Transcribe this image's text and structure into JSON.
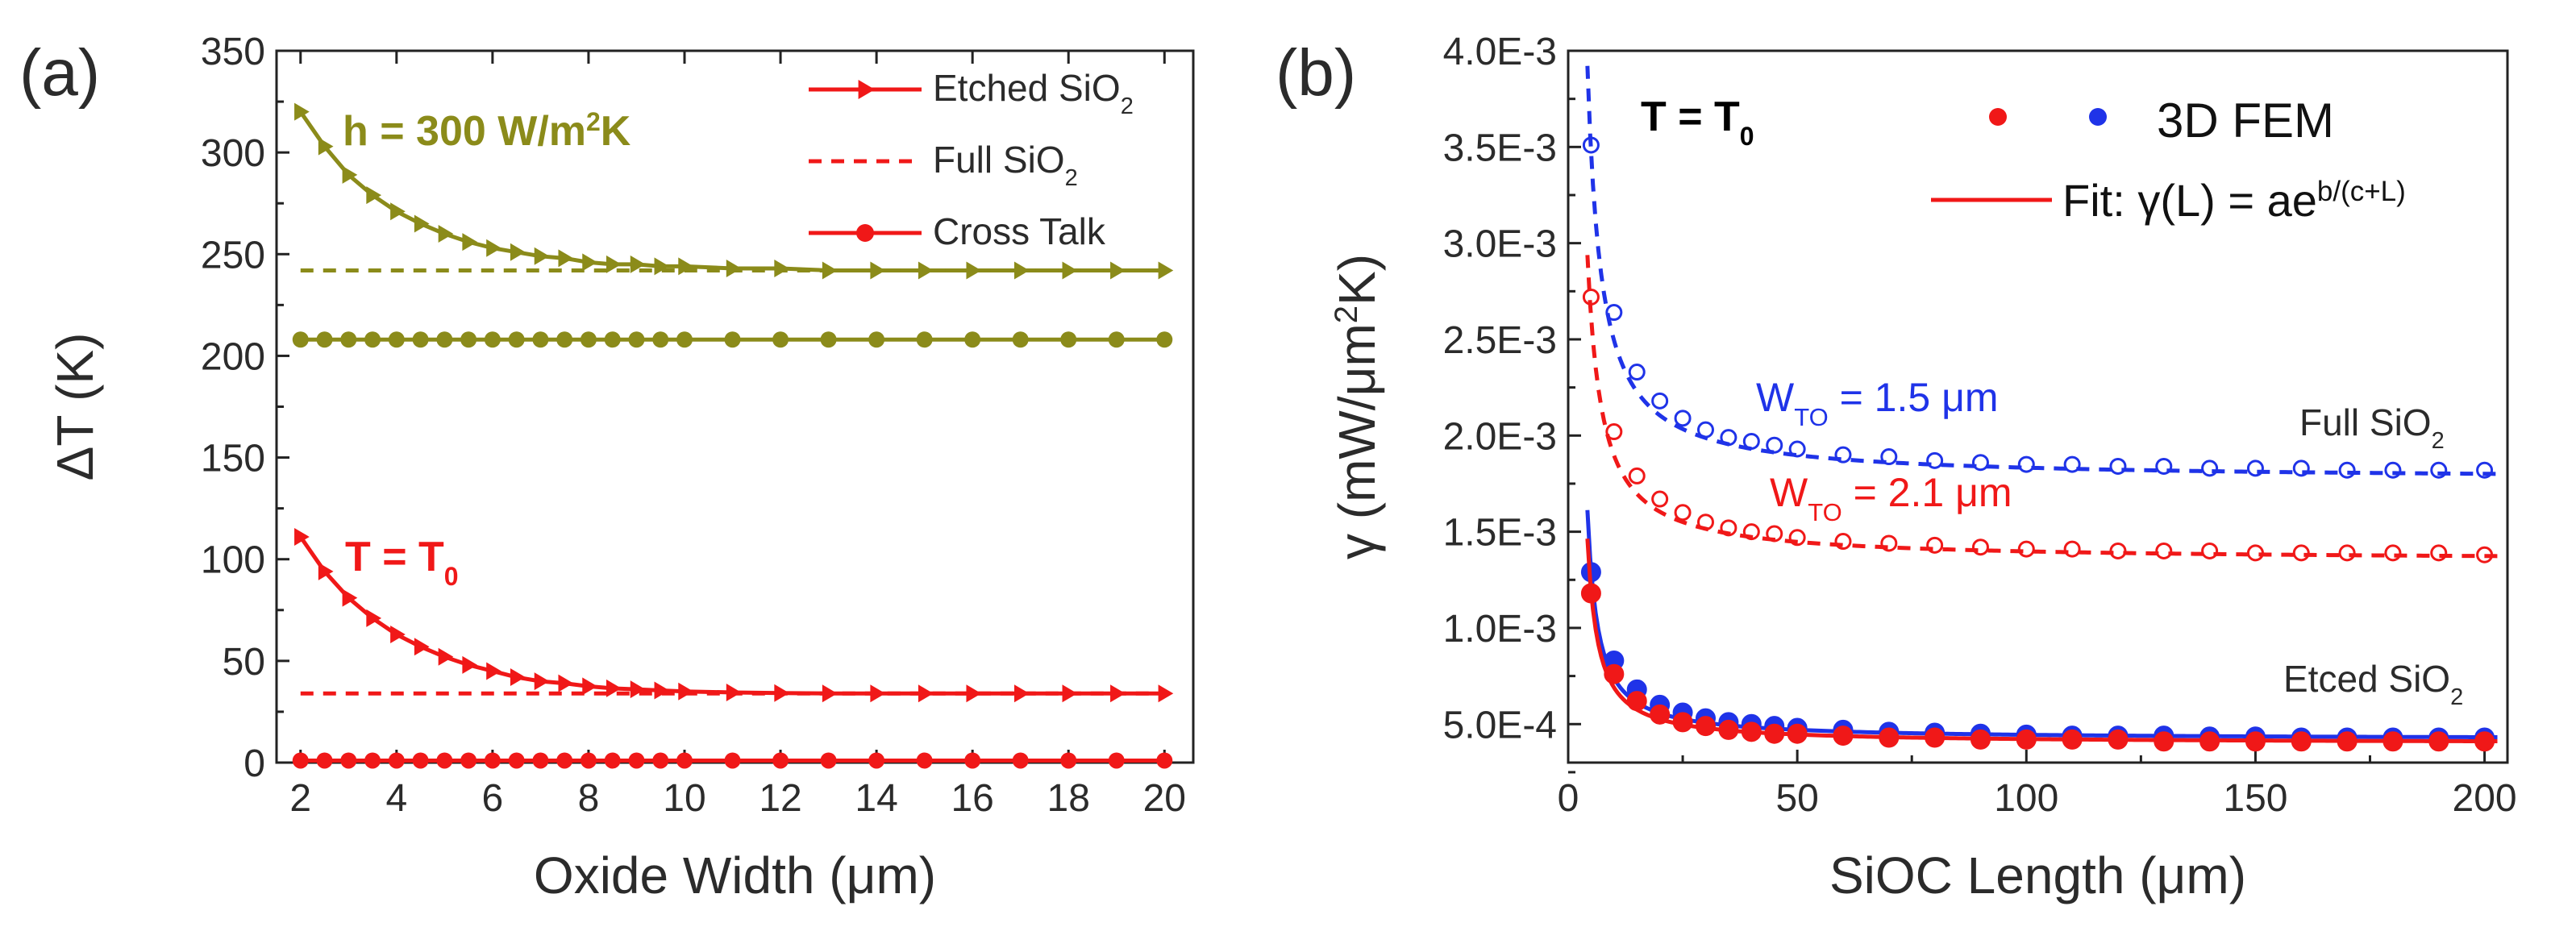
{
  "colors": {
    "olive": "#8b8b1a",
    "red": "#f01818",
    "blue": "#1f33e8",
    "axis": "#222222",
    "text": "#2b2b2b"
  },
  "panel_labels": {
    "a": "(a)",
    "b": "(b)"
  },
  "chart_data": [
    {
      "type": "line",
      "panel": "(a)",
      "xlabel": "Oxide Width (μm)",
      "ylabel": "ΔT (K)",
      "xlim": [
        1.5,
        20.6
      ],
      "ylim": [
        0,
        350
      ],
      "xticks": [
        2,
        4,
        6,
        8,
        10,
        12,
        14,
        16,
        18,
        20
      ],
      "yticks": [
        0,
        50,
        100,
        150,
        200,
        250,
        300,
        350
      ],
      "legend": {
        "placement": "top-right",
        "entries": [
          {
            "label": "Etched SiO",
            "subscript": "2",
            "style": "solid-triangle"
          },
          {
            "label": "Full SiO",
            "subscript": "2",
            "style": "dashed"
          },
          {
            "label": "Cross Talk",
            "style": "solid-circle"
          }
        ]
      },
      "annotations": [
        {
          "text": "h = 300 W/m",
          "sup": "2",
          "after": "K",
          "color": "olive"
        },
        {
          "text": "T = T",
          "sub": "0",
          "color": "red"
        }
      ],
      "series": [
        {
          "name": "Etched SiO2 (h = 300 W/m2K)",
          "color": "olive",
          "style": "solid",
          "marker": "triangle",
          "x": [
            2,
            2.5,
            3,
            3.5,
            4,
            4.5,
            5,
            5.5,
            6,
            6.5,
            7,
            7.5,
            8,
            8.5,
            9,
            9.5,
            10,
            11,
            12,
            13,
            14,
            15,
            16,
            17,
            18,
            19,
            20
          ],
          "y": [
            320,
            303,
            289,
            279,
            271,
            265,
            260,
            256,
            253,
            251,
            249,
            248,
            246,
            245,
            245,
            244,
            244,
            243,
            243,
            242,
            242,
            242,
            242,
            242,
            242,
            242,
            242
          ]
        },
        {
          "name": "Full SiO2 (h = 300 W/m2K)",
          "color": "olive",
          "style": "dashed",
          "x": [
            2,
            20
          ],
          "y": [
            242,
            242
          ]
        },
        {
          "name": "Cross Talk (h = 300 W/m2K)",
          "color": "olive",
          "style": "solid",
          "marker": "circle",
          "x": [
            2,
            2.5,
            3,
            3.5,
            4,
            4.5,
            5,
            5.5,
            6,
            6.5,
            7,
            7.5,
            8,
            8.5,
            9,
            9.5,
            10,
            11,
            12,
            13,
            14,
            15,
            16,
            17,
            18,
            19,
            20
          ],
          "y": [
            208,
            208,
            208,
            208,
            208,
            208,
            208,
            208,
            208,
            208,
            208,
            208,
            208,
            208,
            208,
            208,
            208,
            208,
            208,
            208,
            208,
            208,
            208,
            208,
            208,
            208,
            208
          ]
        },
        {
          "name": "Etched SiO2 (T = T0)",
          "color": "red",
          "style": "solid",
          "marker": "triangle",
          "x": [
            2,
            2.5,
            3,
            3.5,
            4,
            4.5,
            5,
            5.5,
            6,
            6.5,
            7,
            7.5,
            8,
            8.5,
            9,
            9.5,
            10,
            11,
            12,
            13,
            14,
            15,
            16,
            17,
            18,
            19,
            20
          ],
          "y": [
            111,
            94,
            81,
            71,
            63,
            57,
            52,
            48,
            45,
            42,
            40,
            39,
            37.5,
            36.5,
            36,
            35.5,
            35,
            34.5,
            34.2,
            34,
            34,
            34,
            34,
            34,
            34,
            34,
            34
          ]
        },
        {
          "name": "Full SiO2 (T = T0)",
          "color": "red",
          "style": "dashed",
          "x": [
            2,
            20
          ],
          "y": [
            34,
            34
          ]
        },
        {
          "name": "Cross Talk (T = T0)",
          "color": "red",
          "style": "solid",
          "marker": "circle",
          "x": [
            2,
            2.5,
            3,
            3.5,
            4,
            4.5,
            5,
            5.5,
            6,
            6.5,
            7,
            7.5,
            8,
            8.5,
            9,
            9.5,
            10,
            11,
            12,
            13,
            14,
            15,
            16,
            17,
            18,
            19,
            20
          ],
          "y": [
            1,
            1,
            1,
            1,
            1,
            1,
            1,
            1,
            1,
            1,
            1,
            1,
            1,
            1,
            1,
            1,
            1,
            1,
            1,
            1,
            1,
            1,
            1,
            1,
            1,
            1,
            1
          ]
        }
      ]
    },
    {
      "type": "scatter",
      "panel": "(b)",
      "xlabel": "SiOC Length (μm)",
      "ylabel": "γ (mW/μm²K)",
      "ylabel_parts": {
        "a": "γ (mW/μm",
        "sup": "2",
        "b": "K)"
      },
      "xlim": [
        0,
        205
      ],
      "ylim": [
        0.0003,
        0.004
      ],
      "xticks": [
        0,
        50,
        100,
        150,
        200
      ],
      "yticks": [
        0.0005,
        0.001,
        0.0015,
        0.002,
        0.0025,
        0.003,
        0.0035,
        0.004
      ],
      "ytick_labels": [
        "5.0E-4",
        "1.0E-3",
        "1.5E-3",
        "2.0E-3",
        "2.5E-3",
        "3.0E-3",
        "3.5E-3",
        "4.0E-3"
      ],
      "legend": {
        "placement": "top-right",
        "fem_label": "3D FEM",
        "fit_label": "Fit: γ(L) = ae",
        "fit_sup": "b/(c+L)"
      },
      "annotations": [
        {
          "text": "T = T",
          "sub": "0",
          "color": "black"
        },
        {
          "text": "W",
          "sub": "TO",
          "after": " = 1.5 μm",
          "color": "blue"
        },
        {
          "text": "W",
          "sub": "TO",
          "after": " = 2.1 μm",
          "color": "red"
        },
        {
          "text": "Full SiO",
          "sub": "2",
          "color": "text"
        },
        {
          "text": "Etced SiO",
          "sub": "2",
          "color": "text"
        }
      ],
      "series": [
        {
          "name": "3D FEM Full SiO2 W=1.5",
          "color": "blue",
          "marker": "open-circle",
          "x": [
            5,
            10,
            15,
            20,
            25,
            30,
            35,
            40,
            45,
            50,
            60,
            70,
            80,
            90,
            100,
            110,
            120,
            130,
            140,
            150,
            160,
            170,
            180,
            190,
            200
          ],
          "y": [
            0.00351,
            0.00264,
            0.00233,
            0.00218,
            0.00209,
            0.00203,
            0.00199,
            0.00197,
            0.00195,
            0.00193,
            0.0019,
            0.00189,
            0.00187,
            0.00186,
            0.00185,
            0.00185,
            0.00184,
            0.00184,
            0.00183,
            0.00183,
            0.00183,
            0.00182,
            0.00182,
            0.00182,
            0.00182
          ]
        },
        {
          "name": "Fit Full SiO2 W=1.5",
          "color": "blue",
          "style": "dashed",
          "fit": {
            "a": 0.00177,
            "b": 3.5,
            "c": 0.2
          }
        },
        {
          "name": "3D FEM Full SiO2 W=2.1",
          "color": "red",
          "marker": "open-circle",
          "x": [
            5,
            10,
            15,
            20,
            25,
            30,
            35,
            40,
            45,
            50,
            60,
            70,
            80,
            90,
            100,
            110,
            120,
            130,
            140,
            150,
            160,
            170,
            180,
            190,
            200
          ],
          "y": [
            0.00272,
            0.00202,
            0.00179,
            0.00167,
            0.0016,
            0.00155,
            0.00152,
            0.0015,
            0.00149,
            0.00147,
            0.00145,
            0.00144,
            0.00143,
            0.00142,
            0.00141,
            0.00141,
            0.0014,
            0.0014,
            0.0014,
            0.00139,
            0.00139,
            0.00139,
            0.00139,
            0.00139,
            0.00138
          ]
        },
        {
          "name": "Fit Full SiO2 W=2.1",
          "color": "red",
          "style": "dashed",
          "fit": {
            "a": 0.00135,
            "b": 3.5,
            "c": 0.3
          }
        },
        {
          "name": "3D FEM Etched SiO2 W=1.5",
          "color": "blue",
          "marker": "filled-circle",
          "x": [
            5,
            10,
            15,
            20,
            25,
            30,
            35,
            40,
            45,
            50,
            60,
            70,
            80,
            90,
            100,
            110,
            120,
            130,
            140,
            150,
            160,
            170,
            180,
            190,
            200
          ],
          "y": [
            0.00129,
            0.00083,
            0.00068,
            0.0006,
            0.00056,
            0.00053,
            0.00051,
            0.0005,
            0.00049,
            0.00048,
            0.00047,
            0.00046,
            0.000455,
            0.00045,
            0.000445,
            0.00044,
            0.00044,
            0.00044,
            0.000435,
            0.000435,
            0.00043,
            0.00043,
            0.00043,
            0.00043,
            0.00043
          ]
        },
        {
          "name": "Fit Etched SiO2 W=1.5",
          "color": "blue",
          "style": "solid",
          "fit": {
            "a": 0.00042,
            "b": 5.65,
            "c": 0.0
          }
        },
        {
          "name": "3D FEM Etched SiO2 W=2.1",
          "color": "red",
          "marker": "filled-circle",
          "x": [
            5,
            10,
            15,
            20,
            25,
            30,
            35,
            40,
            45,
            50,
            60,
            70,
            80,
            90,
            100,
            110,
            120,
            130,
            140,
            150,
            160,
            170,
            180,
            190,
            200
          ],
          "y": [
            0.00118,
            0.00076,
            0.00062,
            0.00055,
            0.00051,
            0.00049,
            0.00047,
            0.00046,
            0.00045,
            0.00045,
            0.00044,
            0.00043,
            0.00043,
            0.00042,
            0.00042,
            0.00042,
            0.00042,
            0.00041,
            0.00041,
            0.00041,
            0.00041,
            0.00041,
            0.00041,
            0.00041,
            0.00041
          ]
        },
        {
          "name": "Fit Etched SiO2 W=2.1",
          "color": "red",
          "style": "solid",
          "fit": {
            "a": 0.0004,
            "b": 5.45,
            "c": 0.0
          }
        }
      ]
    }
  ]
}
